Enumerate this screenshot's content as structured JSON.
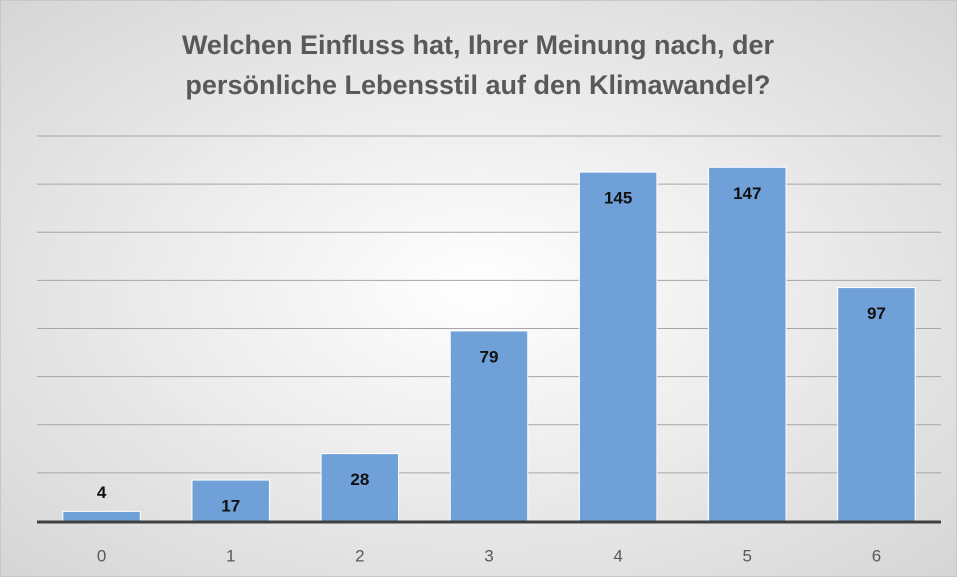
{
  "chart_data": {
    "type": "bar",
    "title": [
      "Welchen Einfluss hat, Ihrer Meinung nach, der",
      "persönliche Lebensstil auf den Klimawandel?"
    ],
    "categories": [
      "0",
      "1",
      "2",
      "3",
      "4",
      "5",
      "6"
    ],
    "values": [
      4,
      17,
      28,
      79,
      145,
      147,
      97
    ],
    "color": "#6fa1d8",
    "ylim": [
      0,
      160
    ],
    "yticks": [
      0,
      20,
      40,
      60,
      80,
      100,
      120,
      140,
      160
    ],
    "grid": true
  }
}
